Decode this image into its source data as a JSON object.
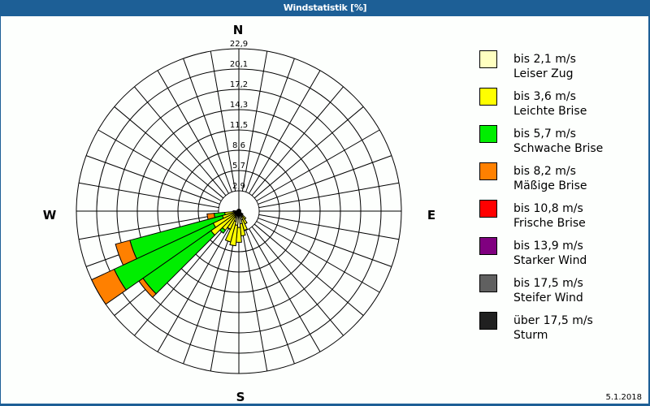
{
  "title": "Windstatistik [%]",
  "date": "5.1.2018",
  "compass": {
    "N": "N",
    "E": "E",
    "S": "S",
    "W": "W"
  },
  "legend": [
    {
      "line1": "bis 2,1 m/s",
      "line2": "Leiser Zug",
      "color": "#ffffc0"
    },
    {
      "line1": "bis 3,6 m/s",
      "line2": "Leichte Brise",
      "color": "#ffff00"
    },
    {
      "line1": "bis 5,7 m/s",
      "line2": "Schwache Brise",
      "color": "#00ee00"
    },
    {
      "line1": "bis 8,2 m/s",
      "line2": "Mäßige Brise",
      "color": "#ff8000"
    },
    {
      "line1": "bis 10,8 m/s",
      "line2": "Frische Brise",
      "color": "#ff0000"
    },
    {
      "line1": "bis 13,9 m/s",
      "line2": "Starker Wind",
      "color": "#800080"
    },
    {
      "line1": "bis 17,5 m/s",
      "line2": "Steifer Wind",
      "color": "#606060"
    },
    {
      "line1": "über 17,5 m/s",
      "line2": "Sturm",
      "color": "#202020"
    }
  ],
  "chart_data": {
    "type": "polar-stacked-bar",
    "title": "Windstatistik [%]",
    "radial_ticks": [
      "2,9",
      "5,7",
      "8,6",
      "11,5",
      "14,3",
      "17,2",
      "20,1",
      "22,9"
    ],
    "rmax": 22.9,
    "sector_width_deg": 10,
    "series": [
      "Leiser Zug",
      "Leichte Brise",
      "Schwache Brise",
      "Mäßige Brise",
      "Frische Brise",
      "Starker Wind",
      "Steifer Wind",
      "Sturm"
    ],
    "sectors": [
      {
        "angle": 140,
        "cumulative": [
          0.6,
          1.4
        ]
      },
      {
        "angle": 150,
        "cumulative": [
          0.9,
          2.0
        ]
      },
      {
        "angle": 160,
        "cumulative": [
          1.3,
          2.8
        ]
      },
      {
        "angle": 170,
        "cumulative": [
          1.8,
          3.5
        ]
      },
      {
        "angle": 180,
        "cumulative": [
          2.3,
          4.4
        ]
      },
      {
        "angle": 190,
        "cumulative": [
          2.0,
          4.9
        ]
      },
      {
        "angle": 200,
        "cumulative": [
          1.5,
          4.5
        ]
      },
      {
        "angle": 210,
        "cumulative": [
          1.0,
          2.8
        ]
      },
      {
        "angle": 220,
        "cumulative": [
          0.8,
          3.3,
          3.8
        ]
      },
      {
        "angle": 230,
        "cumulative": [
          0.6,
          4.8,
          16.5,
          17.2
        ]
      },
      {
        "angle": 240,
        "cumulative": [
          0.6,
          4.0,
          19.4,
          22.9
        ]
      },
      {
        "angle": 250,
        "cumulative": [
          0.6,
          2.4,
          15.9,
          18.0
        ]
      },
      {
        "angle": 260,
        "cumulative": [
          0.4,
          2.0,
          3.5,
          4.5
        ]
      },
      {
        "angle": 270,
        "cumulative": [
          0.3,
          0.8
        ]
      },
      {
        "angle": 130,
        "cumulative": [
          0.3,
          0.7
        ]
      }
    ]
  }
}
